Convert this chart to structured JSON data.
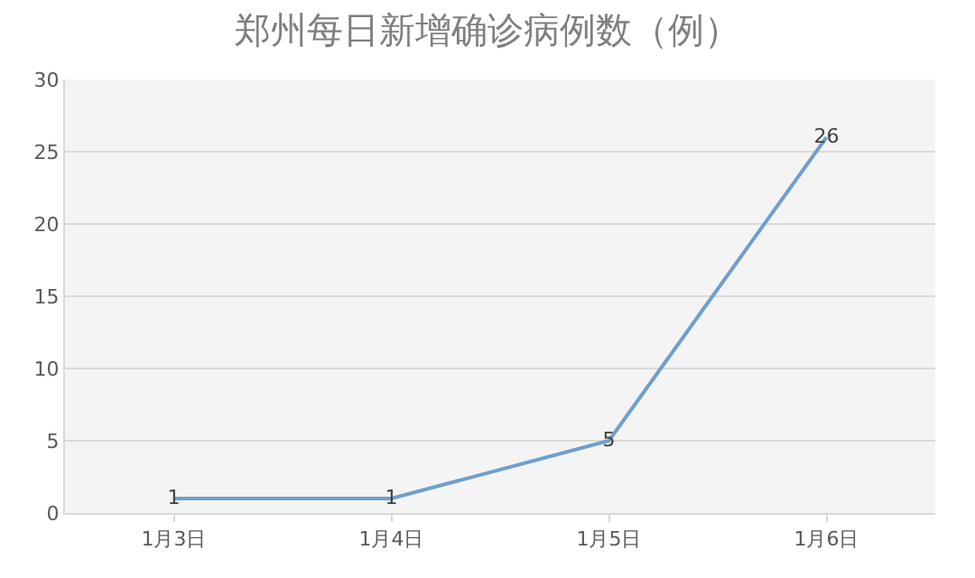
{
  "chart_data": {
    "type": "line",
    "title": "郑州每日新增确诊病例数（例）",
    "categories": [
      "1月3日",
      "1月4日",
      "1月5日",
      "1月6日"
    ],
    "series": [
      {
        "color": "#6f9fce",
        "values": [
          1,
          1,
          5,
          26
        ]
      }
    ],
    "ylim": [
      0,
      30
    ],
    "yticks": [
      0,
      5,
      10,
      15,
      20,
      25,
      30
    ],
    "grid": "y",
    "data_labels": true,
    "marker": "none",
    "line_style": "solid",
    "legend": false
  }
}
